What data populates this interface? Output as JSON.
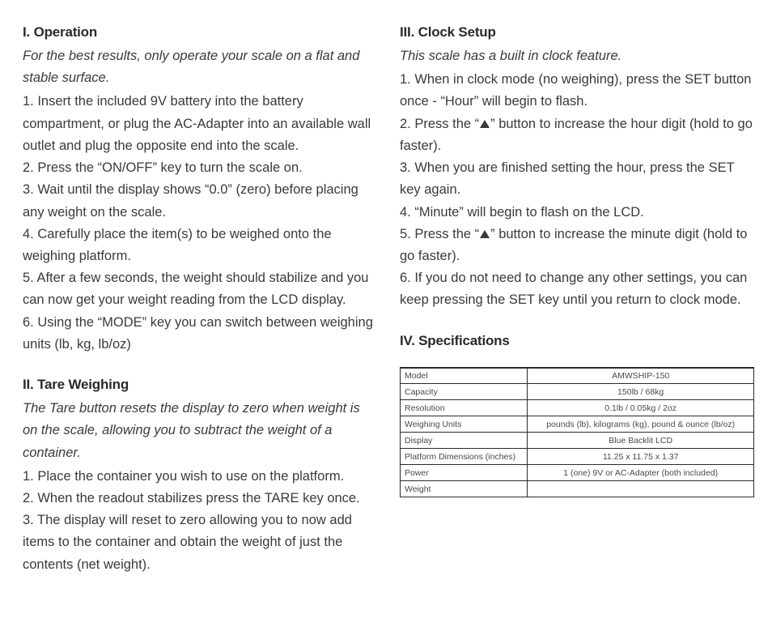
{
  "left": {
    "s1": {
      "heading": "I. Operation",
      "intro": "For the best results, only operate your scale on a flat and stable surface.",
      "steps": [
        "1. Insert the included 9V battery into the battery compartment, or plug the AC-Adapter into an available wall outlet and plug the opposite end into the scale.",
        "2. Press the “ON/OFF” key to turn the scale on.",
        "3. Wait until the display shows “0.0” (zero) before placing any weight on the scale.",
        "4. Carefully place the item(s) to be weighed onto the weighing platform.",
        "5. After a few seconds, the weight should stabilize and you can now get your weight reading from the LCD display.",
        "6. Using the “MODE” key you can switch between weighing units (lb, kg, lb/oz)"
      ]
    },
    "s2": {
      "heading": "II. Tare Weighing",
      "intro": "The Tare button resets the display to zero when weight is on the scale, allowing you to subtract the weight of a container.",
      "steps": [
        "1. Place the container you wish to use on the platform.",
        "2. When the readout stabilizes press the TARE key once.",
        "3. The display will reset to zero allowing you to now add items to the container and obtain the weight of just the contents (net weight)."
      ]
    }
  },
  "right": {
    "s3": {
      "heading": "III. Clock Setup",
      "intro": "This scale has a built in clock feature.",
      "step1": "1. When in clock mode (no weighing), press the SET button once - “Hour” will begin to flash.",
      "step2a": "2. Press the “",
      "step2b": "” button to increase the hour digit (hold to go faster).",
      "step3": "3. When you are finished setting the hour, press the SET key again.",
      "step4": "4. “Minute” will begin to flash on the LCD.",
      "step5a": "5. Press the “",
      "step5b": "” button to increase the minute digit (hold to go faster).",
      "step6": "6. If you do not need to change any other settings, you can keep pressing the SET key until you return to clock mode."
    },
    "s4": {
      "heading": "IV. Specifications",
      "rows": [
        [
          "Model",
          "AMWSHIP-150"
        ],
        [
          "Capacity",
          "150lb / 68kg"
        ],
        [
          "Resolution",
          "0.1lb / 0.05kg / 2oz"
        ],
        [
          "Weighing Units",
          "pounds (lb), kilograms (kg), pound & ounce (lb/oz)"
        ],
        [
          "Display",
          "Blue Backlit LCD"
        ],
        [
          "Platform Dimensions (inches)",
          "11.25 x 11.75 x 1.37"
        ],
        [
          "Power",
          "1 (one) 9V or AC-Adapter (both included)"
        ],
        [
          "Weight",
          ""
        ]
      ]
    }
  }
}
